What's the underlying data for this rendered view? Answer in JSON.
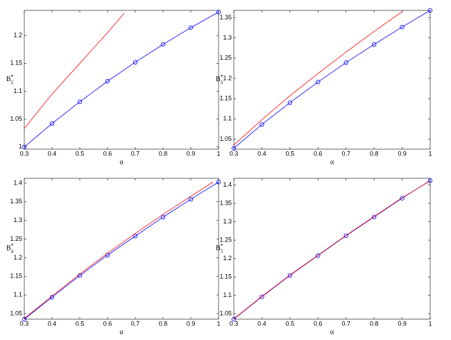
{
  "chart_data": [
    {
      "type": "line",
      "xlabel": "α",
      "ylabel": {
        "text": "B",
        "sub": "2",
        "sup": "*"
      },
      "xlim": [
        0.3,
        1
      ],
      "xticks": [
        0.3,
        0.4,
        0.5,
        0.6,
        0.7,
        0.8,
        0.9,
        1
      ],
      "ylim": [
        0.996,
        1.245
      ],
      "yticks": [
        1,
        1.05,
        1.1,
        1.15,
        1.2
      ],
      "series": [
        {
          "color": "#0000ff",
          "marker": "circle",
          "x": [
            0.3,
            0.4,
            0.5,
            0.6,
            0.7,
            0.8,
            0.9,
            1
          ],
          "values": [
            1.0,
            1.042,
            1.081,
            1.118,
            1.152,
            1.184,
            1.214,
            1.242
          ]
        },
        {
          "color": "#ff0000",
          "marker": "none",
          "x": [
            0.3,
            0.4,
            0.5,
            0.6,
            0.66
          ],
          "values": [
            1.033,
            1.095,
            1.15,
            1.205,
            1.24
          ]
        }
      ]
    },
    {
      "type": "line",
      "xlabel": "α",
      "ylabel": {
        "text": "B",
        "sub": "3",
        "sup": "*"
      },
      "xlim": [
        0.3,
        1
      ],
      "xticks": [
        0.3,
        0.4,
        0.5,
        0.6,
        0.7,
        0.8,
        0.9,
        1
      ],
      "ylim": [
        1.025,
        1.368
      ],
      "yticks": [
        1.05,
        1.1,
        1.15,
        1.2,
        1.25,
        1.3,
        1.35
      ],
      "series": [
        {
          "color": "#0000ff",
          "marker": "circle",
          "x": [
            0.3,
            0.4,
            0.5,
            0.6,
            0.7,
            0.8,
            0.9,
            1
          ],
          "values": [
            1.027,
            1.086,
            1.14,
            1.191,
            1.239,
            1.284,
            1.327,
            1.368
          ]
        },
        {
          "color": "#ff0000",
          "marker": "none",
          "x": [
            0.3,
            0.4,
            0.5,
            0.6,
            0.7,
            0.8,
            0.9
          ],
          "values": [
            1.035,
            1.098,
            1.157,
            1.212,
            1.265,
            1.316,
            1.365
          ]
        }
      ]
    },
    {
      "type": "line",
      "xlabel": "α",
      "ylabel": {
        "text": "B",
        "sub": "4",
        "sup": "*"
      },
      "xlim": [
        0.3,
        1
      ],
      "xticks": [
        0.3,
        0.4,
        0.5,
        0.6,
        0.7,
        0.8,
        0.9,
        1
      ],
      "ylim": [
        1.035,
        1.413
      ],
      "yticks": [
        1.05,
        1.1,
        1.15,
        1.2,
        1.25,
        1.3,
        1.35,
        1.4
      ],
      "series": [
        {
          "color": "#0000ff",
          "marker": "circle",
          "x": [
            0.3,
            0.4,
            0.5,
            0.6,
            0.7,
            0.8,
            0.9,
            1
          ],
          "values": [
            1.035,
            1.094,
            1.152,
            1.207,
            1.258,
            1.309,
            1.357,
            1.403
          ]
        },
        {
          "color": "#ff0000",
          "marker": "none",
          "x": [
            0.3,
            0.4,
            0.5,
            0.6,
            0.7,
            0.8,
            0.9,
            0.98
          ],
          "values": [
            1.037,
            1.097,
            1.156,
            1.212,
            1.265,
            1.316,
            1.365,
            1.403
          ]
        }
      ]
    },
    {
      "type": "line",
      "xlabel": "α",
      "ylabel": {
        "text": "B",
        "sub": "5",
        "sup": "*"
      },
      "xlim": [
        0.3,
        1
      ],
      "xticks": [
        0.3,
        0.4,
        0.5,
        0.6,
        0.7,
        0.8,
        0.9,
        1
      ],
      "ylim": [
        1.035,
        1.418
      ],
      "yticks": [
        1.05,
        1.1,
        1.15,
        1.2,
        1.25,
        1.3,
        1.35,
        1.4
      ],
      "series": [
        {
          "color": "#0000ff",
          "marker": "circle",
          "x": [
            0.3,
            0.4,
            0.5,
            0.6,
            0.7,
            0.8,
            0.9,
            1
          ],
          "values": [
            1.035,
            1.096,
            1.154,
            1.208,
            1.262,
            1.313,
            1.364,
            1.412
          ]
        },
        {
          "color": "#ff0000",
          "marker": "none",
          "x": [
            0.3,
            0.4,
            0.5,
            0.6,
            0.7,
            0.8,
            0.9,
            1
          ],
          "values": [
            1.036,
            1.097,
            1.155,
            1.209,
            1.263,
            1.314,
            1.365,
            1.411
          ]
        }
      ]
    }
  ]
}
